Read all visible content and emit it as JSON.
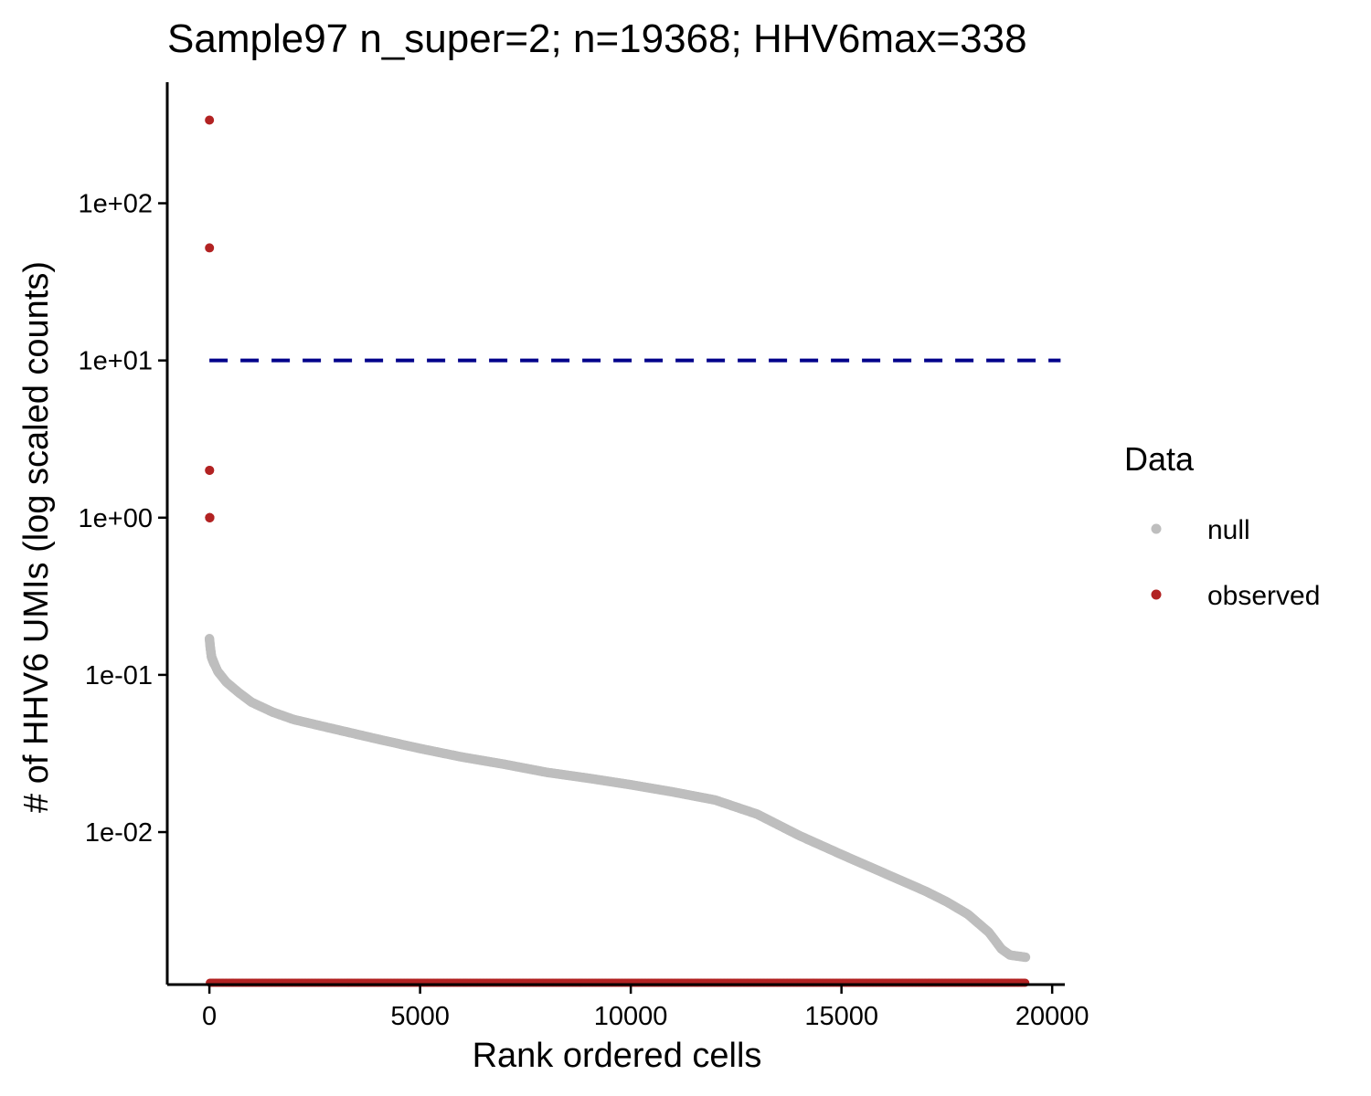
{
  "chart_data": {
    "type": "scatter",
    "title": "Sample97 n_super=2; n=19368; HHV6max=338",
    "xlabel": "Rank ordered cells",
    "ylabel": "# of HHV6 UMIs (log scaled counts)",
    "x_scale": "linear",
    "y_scale": "log10",
    "xlim": [
      -1000,
      20300
    ],
    "ylim_log10": [
      -2.97,
      2.77
    ],
    "x_ticks": [
      0,
      5000,
      10000,
      15000,
      20000
    ],
    "x_tick_labels": [
      "0",
      "5000",
      "10000",
      "15000",
      "20000"
    ],
    "y_ticks": [
      0.01,
      0.1,
      1,
      10,
      100
    ],
    "y_tick_labels": [
      "1e-02",
      "1e-01",
      "1e+00",
      "1e+01",
      "1e+02"
    ],
    "threshold_line": {
      "y": 10,
      "style": "dashed",
      "color": "#00008B"
    },
    "legend": {
      "title": "Data",
      "position": "right",
      "entries": [
        {
          "label": "null",
          "color": "#BEBEBE"
        },
        {
          "label": "observed",
          "color": "#B22222"
        }
      ]
    },
    "series": [
      {
        "name": "null",
        "color": "#BEBEBE",
        "curve": [
          [
            1,
            0.17
          ],
          [
            20,
            0.15
          ],
          [
            50,
            0.13
          ],
          [
            100,
            0.12
          ],
          [
            200,
            0.105
          ],
          [
            400,
            0.09
          ],
          [
            700,
            0.077
          ],
          [
            1000,
            0.067
          ],
          [
            1500,
            0.058
          ],
          [
            2000,
            0.052
          ],
          [
            3000,
            0.045
          ],
          [
            4000,
            0.039
          ],
          [
            5000,
            0.034
          ],
          [
            6000,
            0.03
          ],
          [
            7000,
            0.027
          ],
          [
            8000,
            0.024
          ],
          [
            9000,
            0.022
          ],
          [
            10000,
            0.02
          ],
          [
            11000,
            0.018
          ],
          [
            12000,
            0.016
          ],
          [
            13000,
            0.013
          ],
          [
            14000,
            0.0095
          ],
          [
            15000,
            0.0072
          ],
          [
            16000,
            0.0055
          ],
          [
            17000,
            0.0042
          ],
          [
            17500,
            0.0036
          ],
          [
            18000,
            0.003
          ],
          [
            18500,
            0.0023
          ],
          [
            18800,
            0.0018
          ],
          [
            19000,
            0.00165
          ],
          [
            19368,
            0.0016
          ]
        ]
      },
      {
        "name": "observed",
        "color": "#B22222",
        "points": [
          [
            1,
            338
          ],
          [
            2,
            52
          ],
          [
            3,
            2
          ],
          [
            4,
            2
          ],
          [
            5,
            1
          ],
          [
            6,
            1
          ],
          [
            7,
            1
          ],
          [
            8,
            1
          ],
          [
            9,
            1
          ],
          [
            10,
            1
          ]
        ],
        "zeros_from_rank": 11,
        "zeros_to_rank": 19368
      }
    ]
  }
}
